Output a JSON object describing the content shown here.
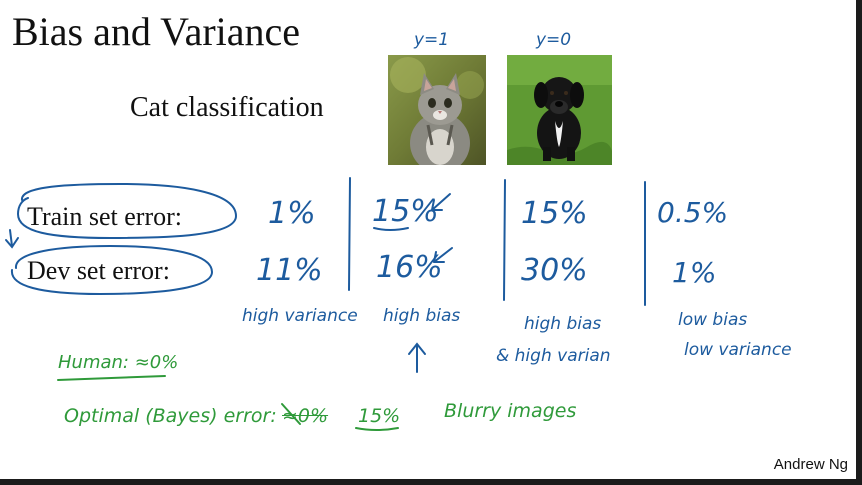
{
  "slide": {
    "title": "Bias and Variance",
    "subtitle": "Cat classification",
    "footer": "Andrew Ng"
  },
  "images": [
    {
      "label": "y=1",
      "name": "cat-photo"
    },
    {
      "label": "y=0",
      "name": "dog-photo"
    }
  ],
  "rows": {
    "train_label": "Train set error:",
    "dev_label": "Dev set error:"
  },
  "columns": [
    {
      "train": "1%",
      "dev": "11%",
      "note1": "high variance",
      "note2": ""
    },
    {
      "train": "15%",
      "dev": "16%",
      "note1": "high bias",
      "note2": ""
    },
    {
      "train": "15%",
      "dev": "30%",
      "note1": "high bias",
      "note2": "& high varian"
    },
    {
      "train": "0.5%",
      "dev": "1%",
      "note1": "low bias",
      "note2": "low variance"
    }
  ],
  "annotations": {
    "human": "Human: ≈0%",
    "optimal_prefix": "Optimal (Bayes) error:",
    "optimal_struck": "≈0%",
    "optimal_value": "15%",
    "blurry": "Blurry images"
  },
  "colors": {
    "ink_blue": "#1d5b9e",
    "ink_green": "#2f9a3a"
  }
}
